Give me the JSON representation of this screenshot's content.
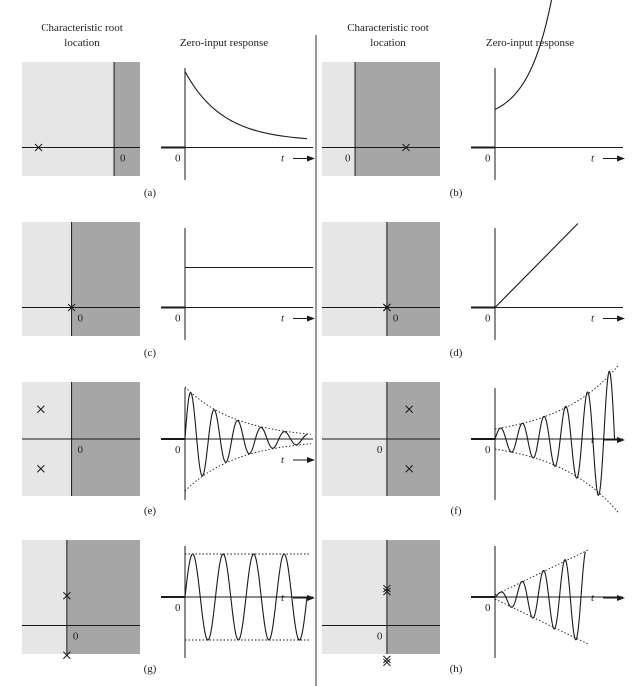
{
  "headers": {
    "left_root": [
      "Characteristic root",
      "location"
    ],
    "left_resp": "Zero-input response",
    "right_root": [
      "Characteristic root",
      "location"
    ],
    "right_resp": "Zero-input response"
  },
  "axis": {
    "origin": "0",
    "t": "t"
  },
  "panels": [
    {
      "id": "a",
      "caption": "(a)",
      "stable_frac": 0.78,
      "roots": [
        [
          -0.82,
          0.0
        ]
      ],
      "response": "decay"
    },
    {
      "id": "b",
      "caption": "(b)",
      "stable_frac": 0.28,
      "roots": [
        [
          0.6,
          0.0
        ]
      ],
      "response": "growth"
    },
    {
      "id": "c",
      "caption": "(c)",
      "stable_frac": 0.42,
      "roots": [
        [
          0.0,
          0.0
        ]
      ],
      "response": "step"
    },
    {
      "id": "d",
      "caption": "(d)",
      "stable_frac": 0.55,
      "roots": [
        [
          0.0,
          0.0
        ],
        [
          0.0,
          0.0
        ]
      ],
      "response": "ramp"
    },
    {
      "id": "e",
      "caption": "(e)",
      "stable_frac": 0.42,
      "roots": [
        [
          -0.62,
          0.58
        ],
        [
          -0.62,
          -0.58
        ]
      ],
      "response": "damped"
    },
    {
      "id": "f",
      "caption": "(f)",
      "stable_frac": 0.55,
      "roots": [
        [
          0.42,
          0.58
        ],
        [
          0.42,
          -0.58
        ]
      ],
      "response": "growing"
    },
    {
      "id": "g",
      "caption": "(g)",
      "stable_frac": 0.38,
      "roots": [
        [
          0.0,
          0.58
        ],
        [
          0.0,
          -0.58
        ]
      ],
      "response": "sustained"
    },
    {
      "id": "h",
      "caption": "(h)",
      "stable_frac": 0.55,
      "roots": [
        [
          0.0,
          0.72
        ],
        [
          0.0,
          0.66
        ],
        [
          0.0,
          -0.66
        ],
        [
          0.0,
          -0.72
        ]
      ],
      "response": "linear-growing"
    }
  ],
  "colors": {
    "stable": "#e6e6e6",
    "unstable": "#a6a6a6",
    "ink": "#1a1a1a"
  }
}
